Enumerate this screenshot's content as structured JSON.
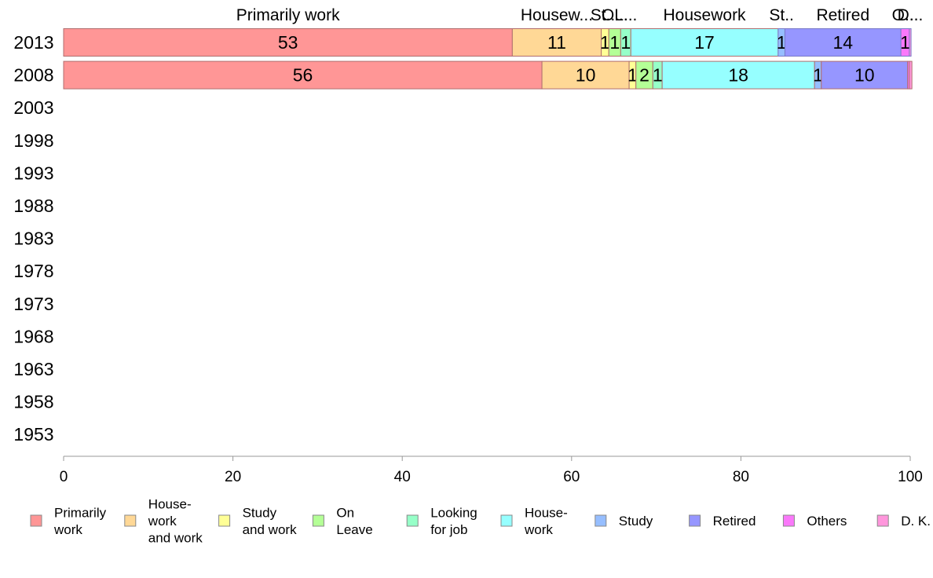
{
  "chart_data": {
    "type": "bar",
    "orientation": "horizontal",
    "stacked": true,
    "categories": [
      "2013",
      "2008",
      "2003",
      "1998",
      "1993",
      "1988",
      "1983",
      "1978",
      "1973",
      "1968",
      "1963",
      "1958",
      "1953"
    ],
    "xlim": [
      0,
      100
    ],
    "xticks": [
      0,
      20,
      40,
      60,
      80,
      100
    ],
    "grid": false,
    "legend_position": "bottom",
    "series": [
      {
        "name": "Primarily work",
        "legend_lines": [
          "Primarily",
          "work"
        ],
        "color": "#FF9696",
        "values": [
          53,
          56.5,
          null,
          null,
          null,
          null,
          null,
          null,
          null,
          null,
          null,
          null,
          null
        ],
        "labels": [
          "53",
          "56",
          "",
          "",
          "",
          "",
          "",
          "",
          "",
          "",
          "",
          "",
          ""
        ]
      },
      {
        "name": "House-work and work",
        "legend_lines": [
          "House-",
          "work",
          "and work"
        ],
        "color": "#FFD896",
        "values": [
          10.5,
          10.3,
          null,
          null,
          null,
          null,
          null,
          null,
          null,
          null,
          null,
          null,
          null
        ],
        "labels": [
          "11",
          "10",
          "",
          "",
          "",
          "",
          "",
          "",
          "",
          "",
          "",
          "",
          ""
        ]
      },
      {
        "name": "Study and work",
        "legend_lines": [
          "Study",
          "and work"
        ],
        "color": "#FFFF96",
        "values": [
          0.9,
          0.8,
          null,
          null,
          null,
          null,
          null,
          null,
          null,
          null,
          null,
          null,
          null
        ],
        "labels": [
          "1",
          "1",
          "",
          "",
          "",
          "",
          "",
          "",
          "",
          "",
          "",
          "",
          ""
        ]
      },
      {
        "name": "On Leave",
        "legend_lines": [
          "On",
          "Leave"
        ],
        "color": "#B4FF96",
        "values": [
          1.4,
          2.0,
          null,
          null,
          null,
          null,
          null,
          null,
          null,
          null,
          null,
          null,
          null
        ],
        "labels": [
          "1",
          "2",
          "",
          "",
          "",
          "",
          "",
          "",
          "",
          "",
          "",
          "",
          ""
        ]
      },
      {
        "name": "Looking for job",
        "legend_lines": [
          "Looking",
          "for job"
        ],
        "color": "#96FFC8",
        "values": [
          1.2,
          1.1,
          null,
          null,
          null,
          null,
          null,
          null,
          null,
          null,
          null,
          null,
          null
        ],
        "labels": [
          "1",
          "1",
          "",
          "",
          "",
          "",
          "",
          "",
          "",
          "",
          "",
          "",
          ""
        ]
      },
      {
        "name": "House-work",
        "legend_lines": [
          "House-",
          "work"
        ],
        "color": "#96FFFF",
        "values": [
          17.4,
          18.0,
          null,
          null,
          null,
          null,
          null,
          null,
          null,
          null,
          null,
          null,
          null
        ],
        "labels": [
          "17",
          "18",
          "",
          "",
          "",
          "",
          "",
          "",
          "",
          "",
          "",
          "",
          ""
        ]
      },
      {
        "name": "Study",
        "legend_lines": [
          "Study"
        ],
        "color": "#96BEFF",
        "values": [
          0.8,
          0.8,
          null,
          null,
          null,
          null,
          null,
          null,
          null,
          null,
          null,
          null,
          null
        ],
        "labels": [
          "1",
          "1",
          "",
          "",
          "",
          "",
          "",
          "",
          "",
          "",
          "",
          "",
          ""
        ]
      },
      {
        "name": "Retired",
        "legend_lines": [
          "Retired"
        ],
        "color": "#9696FF",
        "values": [
          13.7,
          10.2,
          null,
          null,
          null,
          null,
          null,
          null,
          null,
          null,
          null,
          null,
          null
        ],
        "labels": [
          "14",
          "10",
          "",
          "",
          "",
          "",
          "",
          "",
          "",
          "",
          "",
          "",
          ""
        ]
      },
      {
        "name": "Others",
        "legend_lines": [
          "Others"
        ],
        "color": "#FA78FA",
        "values": [
          1.0,
          0.2,
          null,
          null,
          null,
          null,
          null,
          null,
          null,
          null,
          null,
          null,
          null
        ],
        "labels": [
          "1",
          "",
          "",
          "",
          "",
          "",
          "",
          "",
          "",
          "",
          "",
          "",
          ""
        ]
      },
      {
        "name": "D. K.",
        "legend_lines": [
          "D. K."
        ],
        "color": "#FF96DC",
        "values": [
          0.2,
          0.3,
          null,
          null,
          null,
          null,
          null,
          null,
          null,
          null,
          null,
          null,
          null
        ],
        "labels": [
          "",
          "",
          "",
          "",
          "",
          "",
          "",
          "",
          "",
          "",
          "",
          "",
          ""
        ]
      }
    ],
    "top_labels": [
      {
        "text": "Primarily work",
        "series": "Primarily work"
      },
      {
        "text": "Housew...",
        "series": "House-work and work"
      },
      {
        "text": "St...",
        "series": "Study and work"
      },
      {
        "text": "O...",
        "series": "On Leave"
      },
      {
        "text": "L...",
        "series": "Looking for job"
      },
      {
        "text": "Housework",
        "series": "House-work"
      },
      {
        "text": "St..",
        "series": "Study"
      },
      {
        "text": "Retired",
        "series": "Retired"
      },
      {
        "text": "O...",
        "series": "Others"
      },
      {
        "text": "D...",
        "series": "D. K."
      }
    ]
  }
}
